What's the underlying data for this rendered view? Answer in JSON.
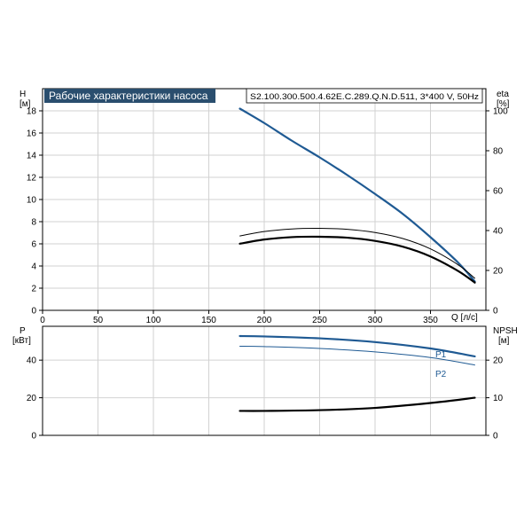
{
  "chart_data": [
    {
      "type": "line",
      "title": "Рабочие характеристики насоса",
      "model": "S2.100.300.500.4.62E.C.289.Q.N.D.511, 3*400 V, 50Hz",
      "xlabel": "Q [л/с]",
      "xlim": [
        0,
        400
      ],
      "x_ticks": [
        0,
        50,
        100,
        150,
        200,
        250,
        300,
        350
      ],
      "y_left": {
        "label_line1": "H",
        "label_line2": "[м]",
        "ylim": [
          0,
          20
        ],
        "ticks": [
          0,
          2,
          4,
          6,
          8,
          10,
          12,
          14,
          16,
          18
        ]
      },
      "y_right": {
        "label_line1": "eta",
        "label_line2": "[%]",
        "ylim": [
          0,
          111.1
        ],
        "ticks": [
          0,
          20,
          40,
          60,
          80,
          100
        ]
      },
      "grid": true,
      "series": [
        {
          "axis": "left",
          "color": "#1f5a93",
          "width": 2.2,
          "x": [
            178,
            200,
            225,
            250,
            275,
            300,
            325,
            350,
            375,
            390
          ],
          "y": [
            18.2,
            16.9,
            15.3,
            13.8,
            12.2,
            10.5,
            8.7,
            6.6,
            4.3,
            2.6
          ]
        },
        {
          "axis": "right",
          "color": "#000000",
          "width": 1.0,
          "x": [
            178,
            200,
            225,
            250,
            275,
            300,
            325,
            350,
            375,
            390
          ],
          "y": [
            37.3,
            39.5,
            40.8,
            41.1,
            40.6,
            39.0,
            36.0,
            30.8,
            22.8,
            16.1
          ]
        },
        {
          "axis": "right",
          "color": "#000000",
          "width": 2.2,
          "x": [
            178,
            200,
            225,
            250,
            275,
            300,
            325,
            350,
            375,
            390
          ],
          "y": [
            33.4,
            35.5,
            36.7,
            36.9,
            36.4,
            34.8,
            31.9,
            27.0,
            19.7,
            13.9
          ]
        }
      ]
    },
    {
      "type": "line",
      "xlim": [
        0,
        400
      ],
      "y_left": {
        "label_line1": "P",
        "label_line2": "[кВт]",
        "ylim": [
          0,
          58
        ],
        "ticks": [
          0,
          20,
          40
        ]
      },
      "y_right": {
        "label_line1": "NPSH",
        "label_line2": "[м]",
        "ylim": [
          0,
          29
        ],
        "ticks": [
          0,
          10,
          20
        ]
      },
      "grid": true,
      "series": [
        {
          "name": "P1",
          "axis": "left",
          "color": "#1f5a93",
          "width": 2.2,
          "x": [
            178,
            200,
            250,
            300,
            350,
            390
          ],
          "y": [
            52.8,
            52.6,
            51.6,
            49.6,
            46.2,
            42.0
          ]
        },
        {
          "name": "P2",
          "axis": "left",
          "color": "#1f5a93",
          "width": 1.0,
          "x": [
            178,
            200,
            250,
            300,
            350,
            390
          ],
          "y": [
            47.4,
            47.2,
            46.2,
            44.4,
            41.4,
            37.4
          ]
        },
        {
          "axis": "right",
          "color": "#000000",
          "width": 2.2,
          "x": [
            178,
            200,
            250,
            300,
            350,
            390
          ],
          "y": [
            6.5,
            6.5,
            6.7,
            7.3,
            8.6,
            10.0
          ]
        }
      ]
    }
  ]
}
